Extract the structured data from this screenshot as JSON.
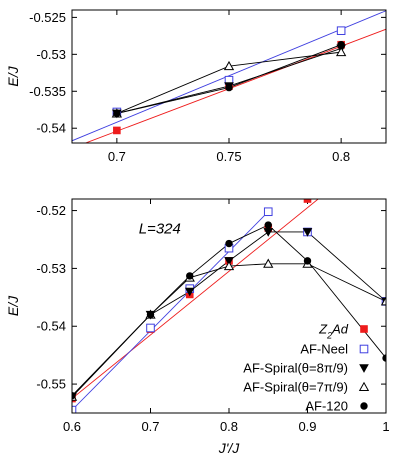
{
  "chart_data": [
    {
      "type": "line",
      "panel": "top",
      "xlabel": "",
      "ylabel": "E/J",
      "xlim": [
        0.68,
        0.82
      ],
      "ylim": [
        -0.542,
        -0.524
      ],
      "xticks": [
        0.7,
        0.75,
        0.8
      ],
      "xtick_labels": [
        "0.7",
        "0.75",
        "0.8"
      ],
      "yticks": [
        -0.525,
        -0.53,
        -0.535,
        -0.54
      ],
      "ytick_labels": [
        "-0.525",
        "-0.53",
        "-0.535",
        "-0.54"
      ],
      "grid": false,
      "series": [
        {
          "key": "z2ad",
          "marker": "filled-square",
          "color": "#ee1c1c",
          "x": [
            0.7,
            0.75,
            0.8
          ],
          "y": [
            -0.5403,
            -0.5343,
            -0.5287
          ],
          "fit": {
            "x": [
              0.68,
              0.82
            ],
            "y": [
              -0.5427,
              -0.5266
            ]
          }
        },
        {
          "key": "neel",
          "marker": "open-square",
          "color": "#4040e0",
          "x": [
            0.7,
            0.75,
            0.8
          ],
          "y": [
            -0.5378,
            -0.5335,
            -0.5268
          ],
          "fit": {
            "x": [
              0.68,
              0.82
            ],
            "y": [
              -0.5417,
              -0.5241
            ]
          }
        },
        {
          "key": "spiral8",
          "marker": "filled-down-triangle",
          "color": "#000000",
          "x": [
            0.7,
            0.75,
            0.8
          ],
          "y": [
            -0.538,
            -0.5343,
            -0.5292
          ]
        },
        {
          "key": "spiral7",
          "marker": "open-up-triangle",
          "color": "#000000",
          "x": [
            0.7,
            0.75,
            0.8
          ],
          "y": [
            -0.538,
            -0.5316,
            -0.5297
          ]
        },
        {
          "key": "af120",
          "marker": "filled-circle",
          "color": "#000000",
          "x": [
            0.7,
            0.75,
            0.8
          ],
          "y": [
            -0.538,
            -0.5345,
            -0.5287
          ]
        }
      ]
    },
    {
      "type": "line",
      "panel": "bottom",
      "xlabel": "J'/J",
      "ylabel": "E/J",
      "annotation": "L=324",
      "xlim": [
        0.6,
        1.0
      ],
      "ylim": [
        -0.555,
        -0.518
      ],
      "xticks": [
        0.6,
        0.7,
        0.8,
        0.9,
        1.0
      ],
      "xtick_labels": [
        "0.6",
        "0.7",
        "0.8",
        "0.9",
        "1"
      ],
      "yticks": [
        -0.52,
        -0.53,
        -0.54,
        -0.55
      ],
      "ytick_labels": [
        "-0.52",
        "-0.53",
        "-0.54",
        "-0.55"
      ],
      "grid": false,
      "legend_position": "bottom-right",
      "legend": [
        "Z2Ad",
        "AF-Neel",
        "AF-Spiral(θ=8π/9)",
        "AF-Spiral(θ=7π/9)",
        "AF-120"
      ],
      "series": [
        {
          "key": "z2ad",
          "name": "Z2Ad",
          "marker": "filled-square",
          "color": "#ee1c1c",
          "x": [
            0.6,
            0.7,
            0.75,
            0.8,
            0.85,
            0.9
          ],
          "y": [
            -0.5525,
            -0.5405,
            -0.5345,
            -0.5287,
            -0.523,
            -0.518
          ],
          "fit": {
            "x": [
              0.6,
              0.95
            ],
            "y": [
              -0.5525,
              -0.514
            ]
          }
        },
        {
          "key": "neel",
          "name": "AF-Neel",
          "marker": "open-square",
          "color": "#4040e0",
          "x": [
            0.6,
            0.7,
            0.75,
            0.8,
            0.85,
            0.9,
            1.0
          ],
          "y": [
            -0.5545,
            -0.5403,
            -0.5335,
            -0.5265,
            -0.5202,
            -0.5237,
            -0.5357
          ],
          "fit": {
            "x": [
              0.6,
              0.85
            ],
            "y": [
              -0.5545,
              -0.5202
            ]
          }
        },
        {
          "key": "spiral8",
          "name": "AF-Spiral(θ=8π/9)",
          "marker": "filled-down-triangle",
          "color": "#000000",
          "x": [
            0.6,
            0.7,
            0.75,
            0.8,
            0.85,
            0.9,
            1.0
          ],
          "y": [
            -0.5522,
            -0.538,
            -0.534,
            -0.5287,
            -0.5237,
            -0.5237,
            -0.5357
          ]
        },
        {
          "key": "spiral7",
          "name": "AF-Spiral(θ=7π/9)",
          "marker": "open-up-triangle",
          "color": "#000000",
          "x": [
            0.6,
            0.7,
            0.75,
            0.8,
            0.85,
            0.9,
            1.0
          ],
          "y": [
            -0.5522,
            -0.538,
            -0.5316,
            -0.5296,
            -0.5292,
            -0.5292,
            -0.5357
          ]
        },
        {
          "key": "af120",
          "name": "AF-120",
          "marker": "filled-circle",
          "color": "#000000",
          "x": [
            0.6,
            0.7,
            0.75,
            0.8,
            0.85,
            0.9,
            1.0
          ],
          "y": [
            -0.552,
            -0.538,
            -0.5313,
            -0.5257,
            -0.5225,
            -0.5287,
            -0.5455
          ]
        }
      ]
    }
  ]
}
